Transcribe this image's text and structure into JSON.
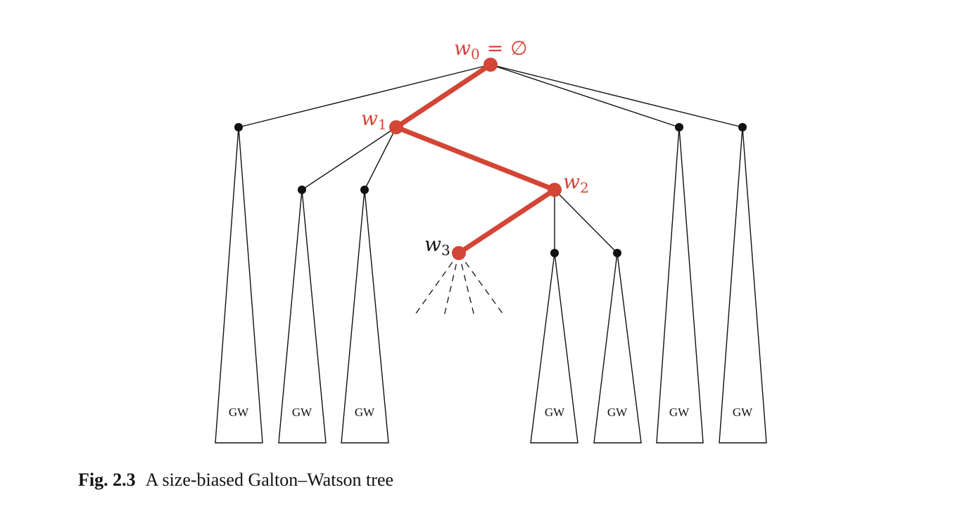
{
  "figure": {
    "spine_labels": {
      "w0": {
        "letter": "w",
        "sub": "0",
        "rel": "=",
        "value": "∅"
      },
      "w1": {
        "letter": "w",
        "sub": "1"
      },
      "w2": {
        "letter": "w",
        "sub": "2"
      },
      "w3": {
        "letter": "w",
        "sub": "3"
      }
    },
    "subtree_label": "GW",
    "subtree_count": 7,
    "colors": {
      "spine": "#d34535",
      "tree": "#111111"
    }
  },
  "caption": {
    "number": "Fig. 2.3",
    "text": "A size-biased Galton–Watson tree"
  }
}
